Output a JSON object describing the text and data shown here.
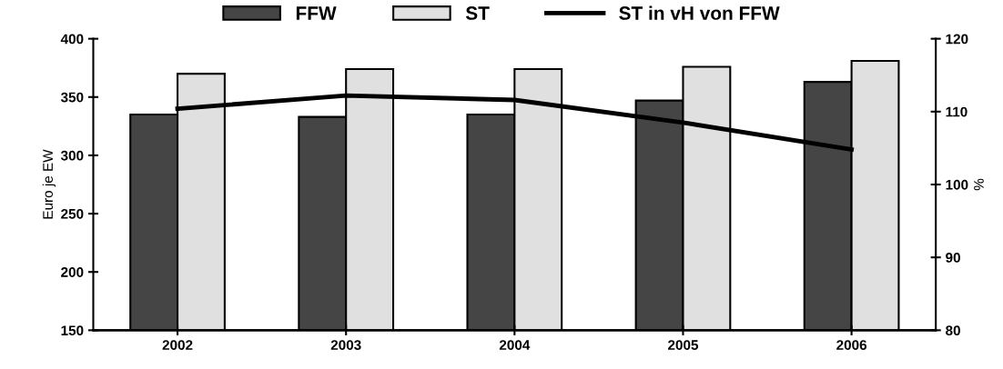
{
  "chart_data": {
    "type": "bar",
    "categories": [
      "2002",
      "2003",
      "2004",
      "2005",
      "2006"
    ],
    "ylabel": "Euro je EW",
    "y2label": "%",
    "ylim": [
      150,
      400
    ],
    "yticks": [
      150,
      200,
      250,
      300,
      350,
      400
    ],
    "y2lim": [
      80,
      120
    ],
    "y2ticks": [
      80,
      90,
      100,
      110,
      120
    ],
    "legend": "top",
    "grid": false,
    "series": [
      {
        "name": "FFW",
        "color": "#454545",
        "values": [
          335,
          333,
          335,
          347,
          363
        ]
      },
      {
        "name": "ST",
        "color": "#e0e0e0",
        "values": [
          370,
          374,
          374,
          376,
          381
        ]
      },
      {
        "name": "ST in vH von FFW",
        "type": "line",
        "axis": "y2",
        "color": "#000000",
        "values": [
          110.4,
          112.2,
          111.6,
          108.5,
          104.8
        ]
      }
    ]
  }
}
